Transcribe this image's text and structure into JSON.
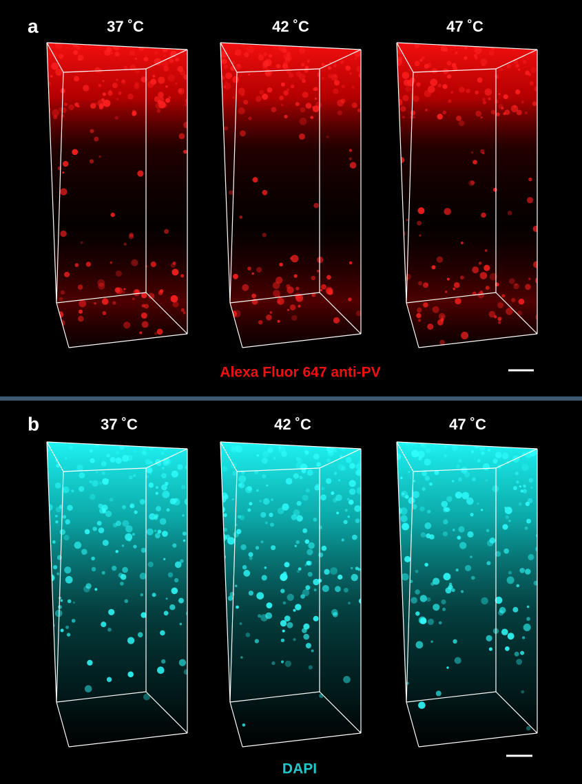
{
  "panels": [
    {
      "label": "a",
      "temperatures": [
        "37 ˚C",
        "42 ˚C",
        "47 ˚C"
      ],
      "stain": "Alexa Fluor 647 anti-PV"
    },
    {
      "label": "b",
      "temperatures": [
        "37 ˚C",
        "42 ˚C",
        "47 ˚C"
      ],
      "stain": "DAPI"
    }
  ]
}
